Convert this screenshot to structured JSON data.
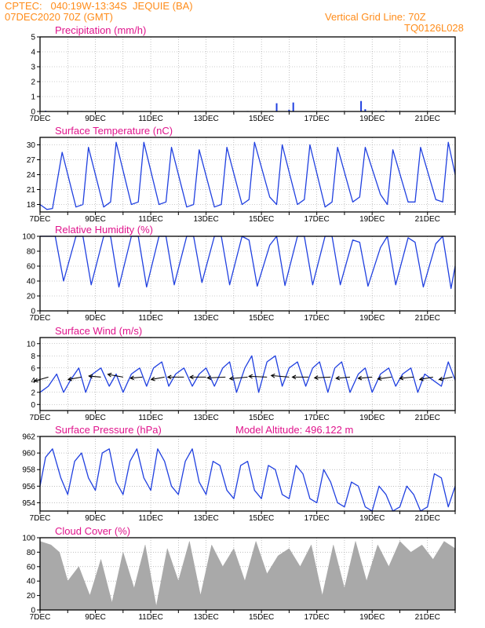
{
  "header": {
    "line1_left": "CPTEC:   040:19W-13:34S  JEQUIE (BA)",
    "line2_left": "07DEC2020 70Z (GMT)",
    "line1_right": "Vertical Grid Line: 70Z",
    "line2_right": "TQ0126L028"
  },
  "x_axis": {
    "labels": [
      "7DEC",
      "9DEC",
      "11DEC",
      "13DEC",
      "15DEC",
      "17DEC",
      "19DEC",
      "21DEC"
    ],
    "day_range": [
      0,
      15
    ]
  },
  "colors": {
    "line": "#2040e0",
    "title": "#e0148c",
    "header": "#ff8c1a",
    "bars": "#a9a9a9",
    "arrow": "#000000"
  },
  "chart_data": [
    {
      "id": "precip",
      "type": "bar",
      "title": "Precipitation (mm/h)",
      "ylim": [
        0,
        5
      ],
      "yticks": [
        0,
        1,
        2,
        3,
        4,
        5
      ],
      "x_days": [
        0.2,
        1.5,
        4.0,
        7.5,
        8.55,
        9.0,
        9.15,
        11.6,
        11.75,
        12.5
      ],
      "values": [
        0.05,
        0.03,
        0.02,
        0.03,
        0.55,
        0.12,
        0.6,
        0.7,
        0.15,
        0.05
      ]
    },
    {
      "id": "temp",
      "type": "line",
      "title": "Surface Temperature (nC)",
      "ylim": [
        16.5,
        31.5
      ],
      "yticks": [
        18,
        21,
        24,
        27,
        30
      ],
      "x_days": [
        0.0,
        0.25,
        0.45,
        0.8,
        1.3,
        1.55,
        1.75,
        2.3,
        2.55,
        2.75,
        3.3,
        3.55,
        3.75,
        4.3,
        4.55,
        4.75,
        5.3,
        5.55,
        5.75,
        6.3,
        6.55,
        6.75,
        7.3,
        7.55,
        7.75,
        8.3,
        8.55,
        8.75,
        9.3,
        9.55,
        9.75,
        10.3,
        10.55,
        10.75,
        11.3,
        11.55,
        11.75,
        12.3,
        12.55,
        12.75,
        13.3,
        13.55,
        13.75,
        14.3,
        14.55,
        14.75,
        15.0
      ],
      "values": [
        18,
        17,
        17.2,
        28.5,
        17.5,
        18,
        29.5,
        17.5,
        18.5,
        30.5,
        18,
        18.5,
        30.5,
        18,
        18.5,
        29.5,
        17.5,
        18,
        29,
        17.5,
        18,
        29.5,
        18,
        19,
        30.5,
        19.5,
        18,
        30,
        18,
        19,
        30,
        17.5,
        18.5,
        29.5,
        18.5,
        19.5,
        29.5,
        20,
        18,
        29,
        18.5,
        18.5,
        29.5,
        19,
        18.5,
        30.5,
        24
      ]
    },
    {
      "id": "rh",
      "type": "line",
      "title": "Relative Humidity (%)",
      "ylim": [
        0,
        100
      ],
      "yticks": [
        0,
        20,
        40,
        60,
        80,
        100
      ],
      "x_days": [
        0.0,
        0.3,
        0.55,
        0.85,
        1.3,
        1.55,
        1.85,
        2.3,
        2.55,
        2.85,
        3.3,
        3.55,
        3.85,
        4.3,
        4.55,
        4.85,
        5.3,
        5.55,
        5.85,
        6.3,
        6.55,
        6.85,
        7.3,
        7.55,
        7.85,
        8.3,
        8.55,
        8.85,
        9.3,
        9.55,
        9.85,
        10.3,
        10.55,
        10.85,
        11.3,
        11.55,
        11.85,
        12.3,
        12.55,
        12.85,
        13.3,
        13.55,
        13.85,
        14.3,
        14.55,
        14.85,
        15.0
      ],
      "values": [
        100,
        100,
        100,
        40,
        100,
        100,
        35,
        100,
        100,
        32,
        100,
        100,
        32,
        100,
        100,
        35,
        100,
        100,
        38,
        100,
        100,
        35,
        100,
        95,
        33,
        88,
        100,
        34,
        100,
        100,
        35,
        100,
        100,
        35,
        95,
        92,
        33,
        85,
        100,
        35,
        98,
        92,
        32,
        90,
        100,
        30,
        60
      ]
    },
    {
      "id": "wind",
      "type": "line",
      "title": "Surface Wind (m/s)",
      "ylim": [
        -1,
        11
      ],
      "yticks": [
        0,
        2,
        4,
        6,
        8,
        10
      ],
      "x_days": [
        0.0,
        0.3,
        0.6,
        0.85,
        1.1,
        1.4,
        1.65,
        1.9,
        2.2,
        2.5,
        2.75,
        3.0,
        3.3,
        3.6,
        3.85,
        4.1,
        4.4,
        4.65,
        4.9,
        5.2,
        5.5,
        5.75,
        6.0,
        6.3,
        6.6,
        6.85,
        7.1,
        7.4,
        7.65,
        7.9,
        8.2,
        8.5,
        8.75,
        9.0,
        9.3,
        9.6,
        9.85,
        10.1,
        10.4,
        10.65,
        10.9,
        11.2,
        11.5,
        11.75,
        12.0,
        12.3,
        12.6,
        12.85,
        13.1,
        13.4,
        13.65,
        13.9,
        14.2,
        14.5,
        14.75,
        15.0
      ],
      "values": [
        2,
        3,
        5,
        2,
        4,
        6,
        2,
        5,
        6,
        3,
        5,
        2,
        5,
        6,
        3,
        6,
        7,
        3,
        5,
        6,
        3,
        5,
        6,
        3,
        6,
        7,
        2,
        6,
        8,
        2,
        7,
        8,
        3,
        6,
        7,
        3,
        6,
        7,
        2,
        6,
        7,
        2,
        5,
        6,
        2,
        5,
        6,
        3,
        5,
        6,
        2,
        5,
        4,
        3,
        7,
        4
      ],
      "arrows": {
        "x_days": [
          0.3,
          1.5,
          2.2,
          3.0,
          3.7,
          4.5,
          5.2,
          6.0,
          6.7,
          7.5,
          8.2,
          9.0,
          9.7,
          10.5,
          11.2,
          12.0,
          12.7,
          13.5,
          14.2,
          14.9
        ],
        "speed": [
          5,
          4,
          3,
          5,
          3,
          4,
          5,
          5,
          6,
          6,
          6,
          6,
          5,
          5,
          4,
          4,
          4,
          4,
          4,
          4
        ],
        "direction_deg": [
          60,
          70,
          100,
          110,
          80,
          70,
          90,
          90,
          85,
          80,
          95,
          100,
          90,
          85,
          80,
          80,
          75,
          80,
          70,
          70
        ]
      }
    },
    {
      "id": "pres",
      "type": "line",
      "title": "Surface Pressure (hPa)",
      "annotation": "Model Altitude: 496.122 m",
      "ylim": [
        953,
        962
      ],
      "yticks": [
        954,
        956,
        958,
        960,
        962
      ],
      "x_days": [
        0.0,
        0.2,
        0.45,
        0.75,
        1.0,
        1.25,
        1.5,
        1.75,
        2.0,
        2.25,
        2.5,
        2.75,
        3.0,
        3.25,
        3.5,
        3.75,
        4.0,
        4.25,
        4.5,
        4.75,
        5.0,
        5.25,
        5.5,
        5.75,
        6.0,
        6.25,
        6.5,
        6.75,
        7.0,
        7.25,
        7.5,
        7.75,
        8.0,
        8.25,
        8.5,
        8.75,
        9.0,
        9.25,
        9.5,
        9.75,
        10.0,
        10.25,
        10.5,
        10.75,
        11.0,
        11.25,
        11.5,
        11.75,
        12.0,
        12.25,
        12.5,
        12.75,
        13.0,
        13.25,
        13.5,
        13.75,
        14.0,
        14.25,
        14.5,
        14.75,
        15.0
      ],
      "values": [
        956,
        959.5,
        960.5,
        957,
        955,
        959,
        960,
        957,
        955.5,
        960,
        960.5,
        956.5,
        955,
        959,
        960.5,
        957,
        955.5,
        960.5,
        959,
        956,
        955,
        959,
        960.5,
        956.5,
        955,
        959,
        958.5,
        955.5,
        954.5,
        958.5,
        959,
        955.5,
        954.5,
        958.5,
        958,
        955,
        954.5,
        958.5,
        957.5,
        954.5,
        954,
        958,
        956.5,
        954,
        953.5,
        956.5,
        956,
        953.5,
        953,
        956,
        955,
        953,
        953.5,
        956,
        955,
        953,
        953.5,
        957.5,
        957,
        953.5,
        956
      ]
    },
    {
      "id": "cloud",
      "type": "area",
      "title": "Cloud Cover (%)",
      "ylim": [
        0,
        100
      ],
      "yticks": [
        0,
        20,
        40,
        60,
        80,
        100
      ],
      "x_days": [
        0.0,
        0.4,
        0.7,
        1.0,
        1.4,
        1.8,
        2.2,
        2.6,
        3.0,
        3.4,
        3.8,
        4.2,
        4.6,
        5.0,
        5.4,
        5.8,
        6.2,
        6.6,
        7.0,
        7.4,
        7.8,
        8.2,
        8.6,
        9.0,
        9.4,
        9.8,
        10.2,
        10.6,
        11.0,
        11.4,
        11.8,
        12.2,
        12.6,
        13.0,
        13.4,
        13.8,
        14.2,
        14.6,
        15.0
      ],
      "values": [
        95,
        90,
        80,
        40,
        60,
        20,
        70,
        10,
        80,
        30,
        90,
        5,
        85,
        40,
        95,
        20,
        90,
        60,
        85,
        40,
        95,
        50,
        75,
        85,
        60,
        90,
        20,
        90,
        30,
        95,
        40,
        90,
        60,
        95,
        80,
        90,
        70,
        95,
        85
      ]
    }
  ]
}
